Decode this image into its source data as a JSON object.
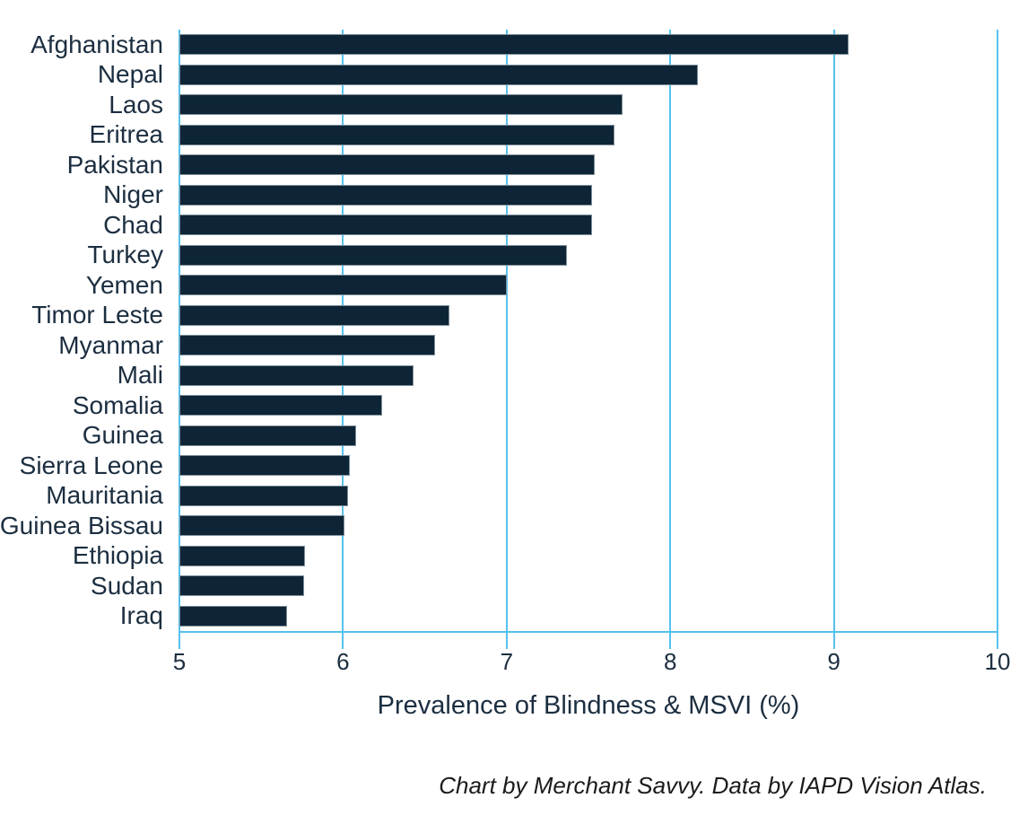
{
  "chart_data": {
    "type": "bar",
    "orientation": "horizontal",
    "title": "",
    "xlabel": "Prevalence of Blindness & MSVI (%)",
    "ylabel": "",
    "xlim": [
      5,
      10
    ],
    "xticks": [
      5,
      6,
      7,
      8,
      9,
      10
    ],
    "grid": true,
    "categories": [
      "Afghanistan",
      "Nepal",
      "Laos",
      "Eritrea",
      "Pakistan",
      "Niger",
      "Chad",
      "Turkey",
      "Yemen",
      "Timor Leste",
      "Myanmar",
      "Mali",
      "Somalia",
      "Guinea",
      "Sierra Leone",
      "Mauritania",
      "Guinea Bissau",
      "Ethiopia",
      "Sudan",
      "Iraq"
    ],
    "values": [
      9.09,
      8.17,
      7.71,
      7.66,
      7.54,
      7.52,
      7.52,
      7.37,
      7.0,
      6.65,
      6.56,
      6.43,
      6.24,
      6.08,
      6.04,
      6.03,
      6.01,
      5.77,
      5.76,
      5.66
    ]
  },
  "footer": {
    "credit": "Chart by Merchant Savvy. Data by IAPD Vision Atlas."
  },
  "colors": {
    "bar_fill": "#0d2536",
    "bar_border": "#7e8f9b",
    "grid_blue": "#56c1ee",
    "text": "#1c2e40",
    "credit_text": "#1b1b1b"
  }
}
